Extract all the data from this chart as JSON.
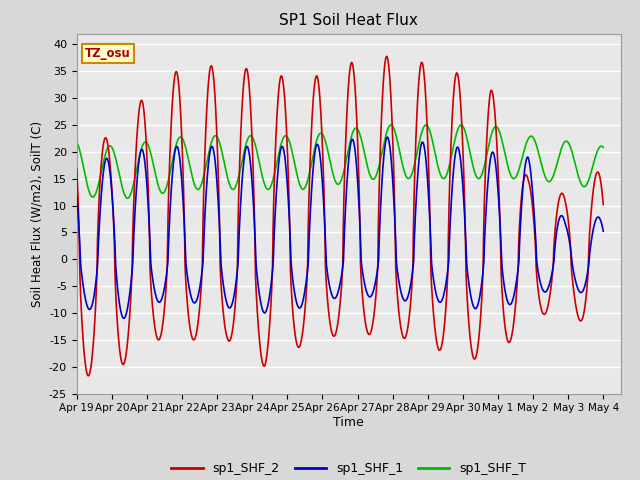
{
  "title": "SP1 Soil Heat Flux",
  "xlabel": "Time",
  "ylabel": "Soil Heat Flux (W/m2), SoilT (C)",
  "ylim": [
    -25,
    42
  ],
  "yticks": [
    -25,
    -20,
    -15,
    -10,
    -5,
    0,
    5,
    10,
    15,
    20,
    25,
    30,
    35,
    40
  ],
  "bg_color": "#d8d8d8",
  "plot_bg_color": "#e8e8e8",
  "series": {
    "sp1_SHF_2": {
      "color": "#cc0000",
      "linewidth": 1.2
    },
    "sp1_SHF_1": {
      "color": "#0000cc",
      "linewidth": 1.2
    },
    "sp1_SHF_T": {
      "color": "#00bb00",
      "linewidth": 1.2
    }
  },
  "legend_label": "TZ_osu",
  "legend_box_color": "#ffffcc",
  "legend_box_edge": "#cc8800",
  "tick_labels": [
    "Apr 19",
    "Apr 20",
    "Apr 21",
    "Apr 22",
    "Apr 23",
    "Apr 24",
    "Apr 25",
    "Apr 26",
    "Apr 27",
    "Apr 28",
    "Apr 29",
    "Apr 30",
    "May 1",
    "May 2",
    "May 3",
    "May 4"
  ],
  "shf2": {
    "peak_amps": [
      28,
      21,
      33,
      36,
      36,
      35,
      33,
      36,
      38,
      37,
      35,
      32,
      15,
      12,
      17
    ],
    "trough_amps": [
      22,
      21,
      15,
      15,
      15,
      20,
      16,
      14,
      14,
      15,
      18,
      19,
      12,
      8,
      17
    ],
    "peak_phase": 0.58,
    "trough_phase": 0.05
  },
  "shf1": {
    "peak_amps": [
      18,
      19,
      21,
      21,
      21,
      21,
      21,
      22,
      23,
      22,
      21,
      20,
      19,
      7,
      8
    ],
    "trough_amps": [
      8,
      12,
      8,
      8,
      9,
      10,
      9,
      7,
      7,
      8,
      8,
      10,
      7,
      5,
      8
    ],
    "peak_phase": 0.6,
    "trough_phase": 0.08
  },
  "shft": {
    "base": [
      17,
      16,
      17,
      18,
      18,
      18,
      18,
      19,
      20,
      20,
      20,
      20,
      19,
      18,
      17
    ],
    "amp": [
      5,
      5,
      5,
      5,
      5,
      5,
      5,
      5,
      5,
      5,
      5,
      5,
      4,
      4,
      4
    ],
    "peak_phase": 0.7
  }
}
